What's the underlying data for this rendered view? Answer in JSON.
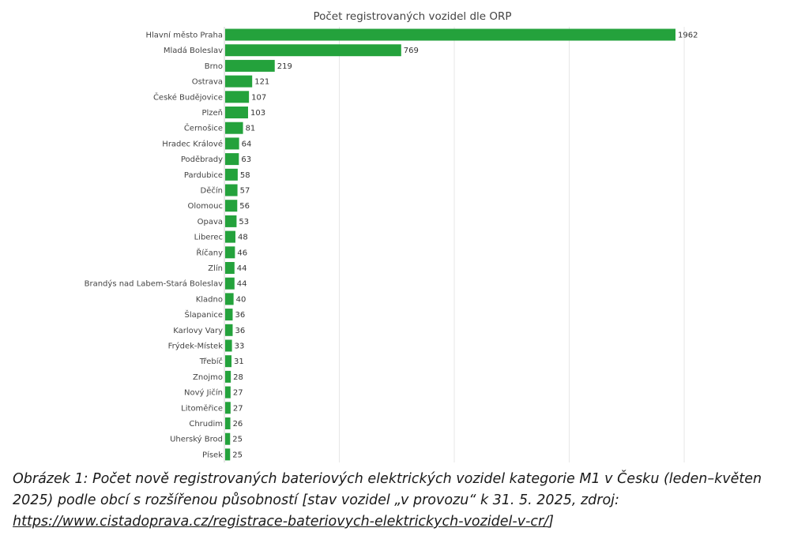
{
  "chart_data": {
    "type": "bar",
    "orientation": "horizontal",
    "title": "Počet registrovaných vozidel dle ORP",
    "xlabel": "",
    "ylabel": "",
    "xlim": [
      0,
      2000
    ],
    "grid": true,
    "legend": "none",
    "bar_color": "#24a23c",
    "categories": [
      "Hlavní město Praha",
      "Mladá Boleslav",
      "Brno",
      "Ostrava",
      "České Budějovice",
      "Plzeň",
      "Černošice",
      "Hradec Králové",
      "Poděbrady",
      "Pardubice",
      "Děčín",
      "Olomouc",
      "Opava",
      "Liberec",
      "Říčany",
      "Zlín",
      "Brandýs nad Labem-Stará Boleslav",
      "Kladno",
      "Šlapanice",
      "Karlovy Vary",
      "Frýdek-Místek",
      "Třebíč",
      "Znojmo",
      "Nový Jičín",
      "Litoměřice",
      "Chrudim",
      "Uherský Brod",
      "Písek"
    ],
    "values": [
      1962,
      769,
      219,
      121,
      107,
      103,
      81,
      64,
      63,
      58,
      57,
      56,
      53,
      48,
      46,
      44,
      44,
      40,
      36,
      36,
      33,
      31,
      28,
      27,
      27,
      26,
      25,
      25
    ],
    "value_labels": [
      "1962",
      "769",
      "219",
      "121",
      "107",
      "103",
      "81",
      "64",
      "63",
      "58",
      "57",
      "56",
      "53",
      "48",
      "46",
      "44",
      "44",
      "40",
      "36",
      "36",
      "33",
      "31",
      "28",
      "27",
      "27",
      "26",
      "25",
      "25"
    ]
  },
  "caption": {
    "text": "Obrázek 1: Počet nově registrovaných bateriových elektrických vozidel kategorie M1 v Česku (leden–květen 2025) podle obcí s rozšířenou působností [stav vozidel „v provozu“ k 31. 5. 2025, zdroj: ",
    "link": "https://www.cistadoprava.cz/registrace-bateriovych-elektrickych-vozidel-v-cr/",
    "tail": "]"
  }
}
